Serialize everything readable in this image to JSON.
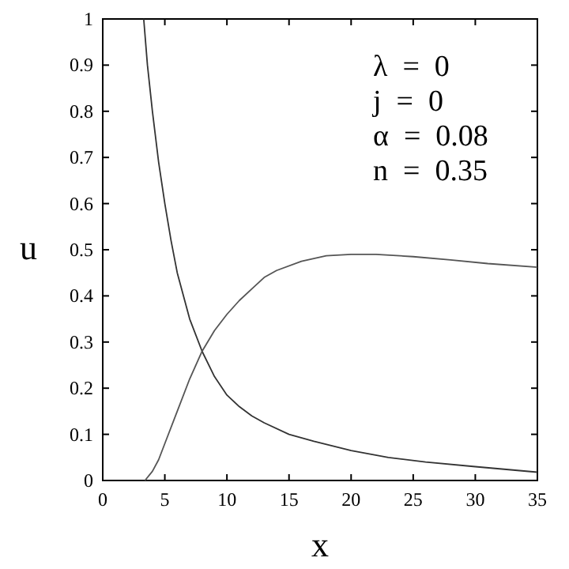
{
  "chart_data": {
    "type": "line",
    "xlabel": "x",
    "ylabel": "u",
    "xlim": [
      0,
      35
    ],
    "ylim": [
      0,
      1
    ],
    "xticks": [
      0,
      5,
      10,
      15,
      20,
      25,
      30,
      35
    ],
    "yticks": [
      0,
      0.1,
      0.2,
      0.3,
      0.4,
      0.5,
      0.6,
      0.7,
      0.8,
      0.9,
      1
    ],
    "grid": false,
    "marker": "none",
    "line_style": "solid",
    "annotations": [
      "λ  =  0",
      "j  =  0",
      "α  =  0.08",
      "n  =  0.35"
    ],
    "series": [
      {
        "color": "#333333",
        "x": [
          3.3,
          3.6,
          4,
          4.5,
          5,
          5.5,
          6,
          7,
          8,
          9,
          10,
          11,
          12,
          13,
          15,
          17,
          20,
          23,
          26,
          30,
          35
        ],
        "values": [
          1,
          0.9,
          0.8,
          0.69,
          0.6,
          0.52,
          0.45,
          0.35,
          0.28,
          0.225,
          0.185,
          0.16,
          0.14,
          0.125,
          0.1,
          0.085,
          0.065,
          0.05,
          0.04,
          0.03,
          0.018
        ]
      },
      {
        "color": "#555555",
        "x": [
          3.4,
          4,
          4.5,
          5,
          6,
          7,
          8,
          9,
          10,
          11,
          12,
          13,
          14,
          16,
          18,
          20,
          22,
          25,
          28,
          31,
          35
        ],
        "values": [
          0,
          0.02,
          0.045,
          0.08,
          0.15,
          0.22,
          0.28,
          0.325,
          0.36,
          0.39,
          0.415,
          0.44,
          0.455,
          0.475,
          0.487,
          0.49,
          0.49,
          0.485,
          0.478,
          0.47,
          0.462
        ]
      }
    ]
  }
}
